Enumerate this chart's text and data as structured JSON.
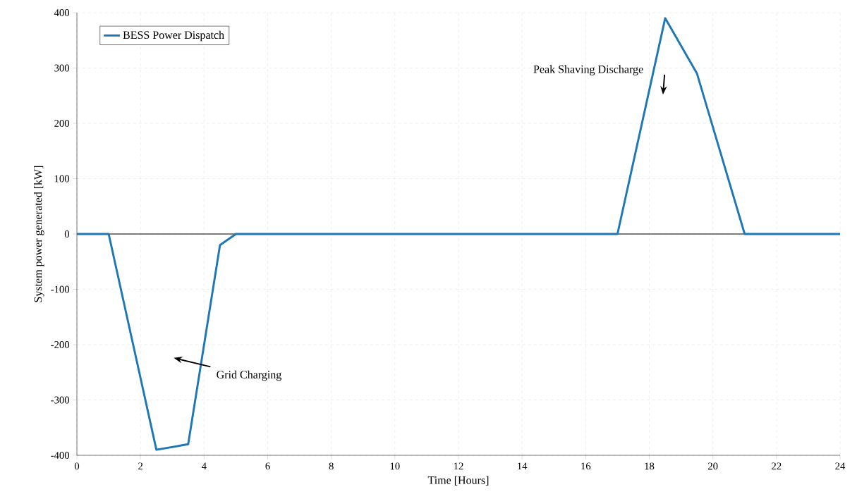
{
  "chart_data": {
    "type": "line",
    "xlabel": "Time [Hours]",
    "ylabel": "System power generated [kW]",
    "x": [
      0,
      1,
      2.5,
      3.5,
      4.5,
      5,
      17,
      18.5,
      19.5,
      21,
      24
    ],
    "series": [
      {
        "name": "BESS Power Dispatch",
        "color": "#1f77b4",
        "values": [
          0,
          0,
          -390,
          -380,
          -20,
          0,
          0,
          390,
          290,
          0,
          0
        ]
      }
    ],
    "xlim": [
      0,
      24
    ],
    "ylim": [
      -400,
      400
    ],
    "xticks": [
      0,
      2,
      4,
      6,
      8,
      10,
      12,
      14,
      16,
      18,
      20,
      22,
      24
    ],
    "yticks": [
      -400,
      -300,
      -200,
      -100,
      0,
      100,
      200,
      300,
      400
    ],
    "ref_lines": [
      {
        "axis": "y",
        "value": 0,
        "color": "#000000"
      }
    ],
    "annotations": [
      "Peak Shaving Discharge",
      "Grid Charging"
    ],
    "grid": true,
    "legend": "top left",
    "marker": "none",
    "line_style": "solid"
  }
}
